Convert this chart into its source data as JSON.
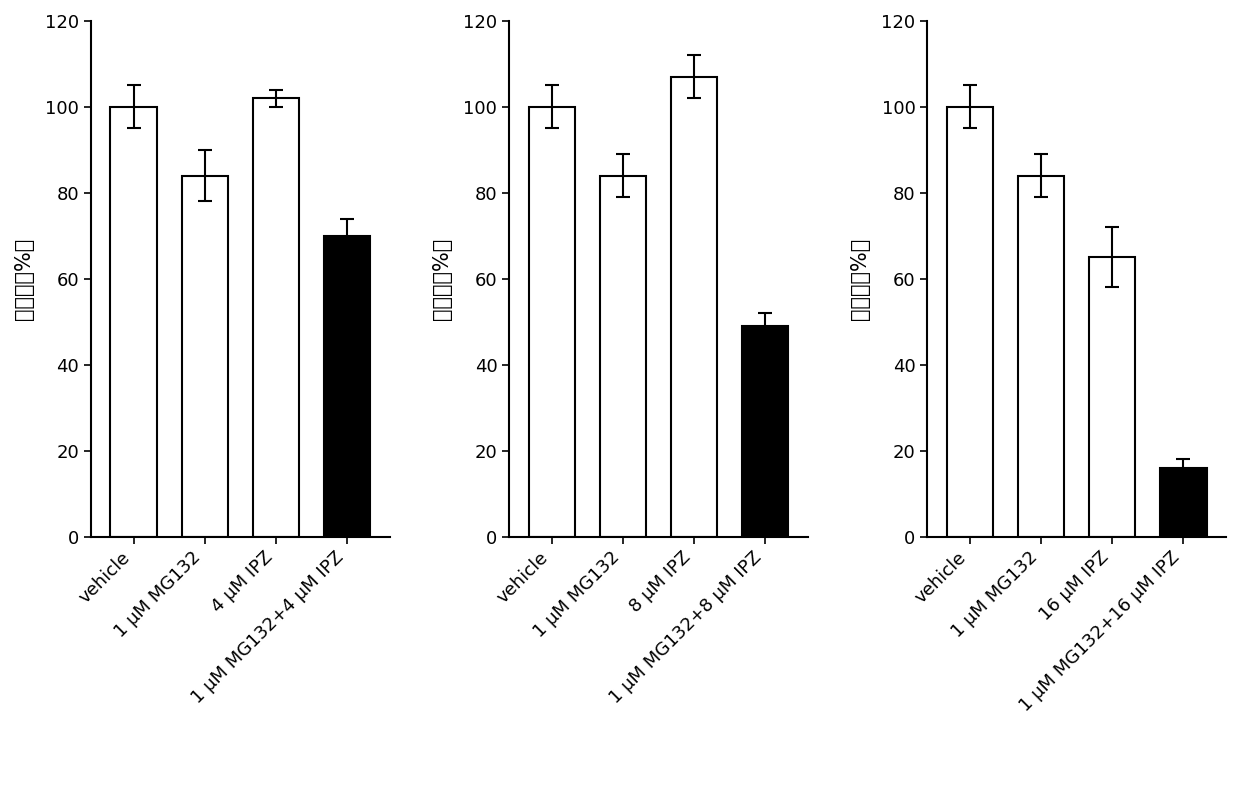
{
  "panels": [
    {
      "values": [
        100,
        84,
        102,
        70
      ],
      "errors": [
        5,
        6,
        2,
        4
      ],
      "colors": [
        "white",
        "white",
        "white",
        "black"
      ],
      "labels": [
        "vehicle",
        "1 μM MG132",
        "4 μM IPZ",
        "1 μM MG132+4 μM IPZ"
      ],
      "ylabel": "存活率（%）"
    },
    {
      "values": [
        100,
        84,
        107,
        49
      ],
      "errors": [
        5,
        5,
        5,
        3
      ],
      "colors": [
        "white",
        "white",
        "white",
        "black"
      ],
      "labels": [
        "vehicle",
        "1 μM MG132",
        "8 μM IPZ",
        "1 μM MG132+8 μM IPZ"
      ],
      "ylabel": "存活率（%）"
    },
    {
      "values": [
        100,
        84,
        65,
        16
      ],
      "errors": [
        5,
        5,
        7,
        2
      ],
      "colors": [
        "white",
        "white",
        "white",
        "black"
      ],
      "labels": [
        "vehicle",
        "1 μM MG132",
        "16 μM IPZ",
        "1 μM MG132+16 μM IPZ"
      ],
      "ylabel": "存活率（%）"
    }
  ],
  "ylim": [
    0,
    120
  ],
  "yticks": [
    0,
    20,
    40,
    60,
    80,
    100,
    120
  ],
  "bar_width": 0.65,
  "edgecolor": "black",
  "background_color": "white",
  "tick_fontsize": 13,
  "label_fontsize": 15
}
